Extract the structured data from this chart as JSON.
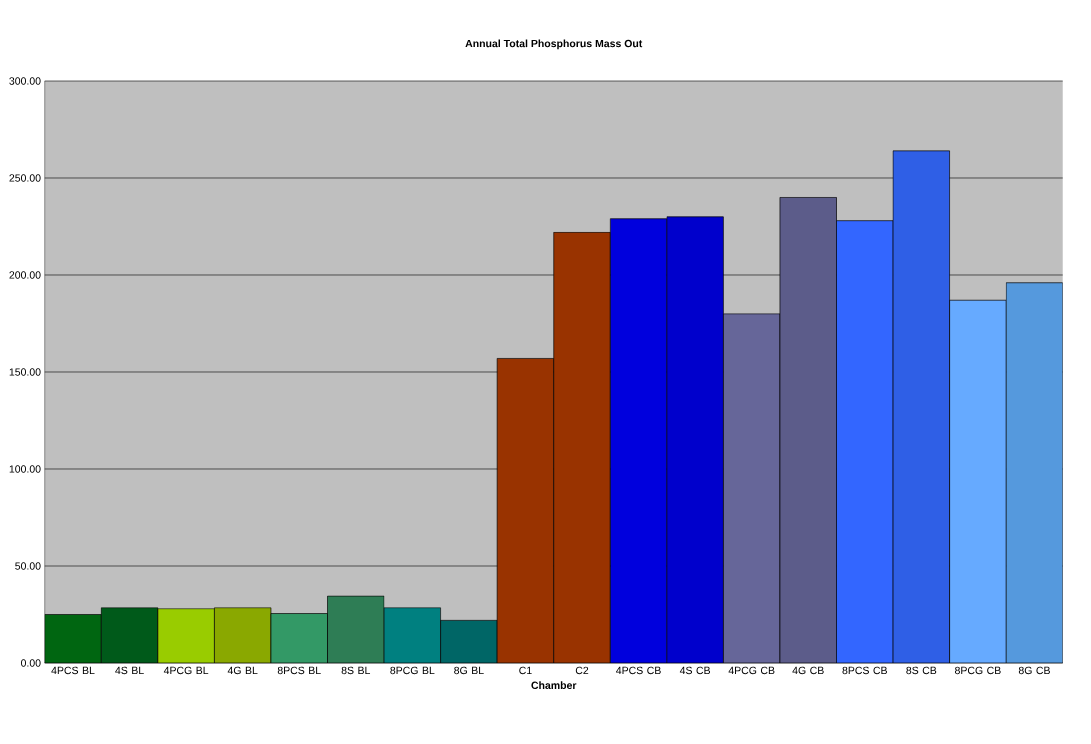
{
  "chart_data": {
    "type": "bar",
    "title": "Annual Total Phosphorus Mass Out",
    "xlabel": "Chamber",
    "categories": [
      "4PCS BL",
      "4S BL",
      "4PCG BL",
      "4G BL",
      "8PCS BL",
      "8S BL",
      "8PCG BL",
      "8G BL",
      "C1",
      "C2",
      "4PCS CB",
      "4S CB",
      "4PCG CB",
      "4G CB",
      "8PCS CB",
      "8S CB",
      "8PCG CB",
      "8G CB"
    ],
    "values": [
      25,
      28.5,
      28,
      28.5,
      25.5,
      34.5,
      28.5,
      22,
      157,
      222,
      229,
      230,
      180,
      240,
      228,
      264,
      187,
      196
    ],
    "colors": [
      "#006611",
      "#005a1a",
      "#99cc00",
      "#8aa800",
      "#339966",
      "#2e7d55",
      "#008080",
      "#006666",
      "#993300",
      "#993300",
      "#0000dd",
      "#0000cc",
      "#666699",
      "#5c5c8a",
      "#3366ff",
      "#2f5fe6",
      "#66aaff",
      "#5599dd"
    ],
    "ylim": [
      0,
      300
    ],
    "yticks": [
      {
        "value": 0,
        "label": "0.00"
      },
      {
        "value": 50,
        "label": "50.00"
      },
      {
        "value": 100,
        "label": "100.00"
      },
      {
        "value": 150,
        "label": "150.00"
      },
      {
        "value": 200,
        "label": "200.00"
      },
      {
        "value": 250,
        "label": "250.00"
      },
      {
        "value": 300,
        "label": "300.00"
      }
    ],
    "grid": "y"
  }
}
